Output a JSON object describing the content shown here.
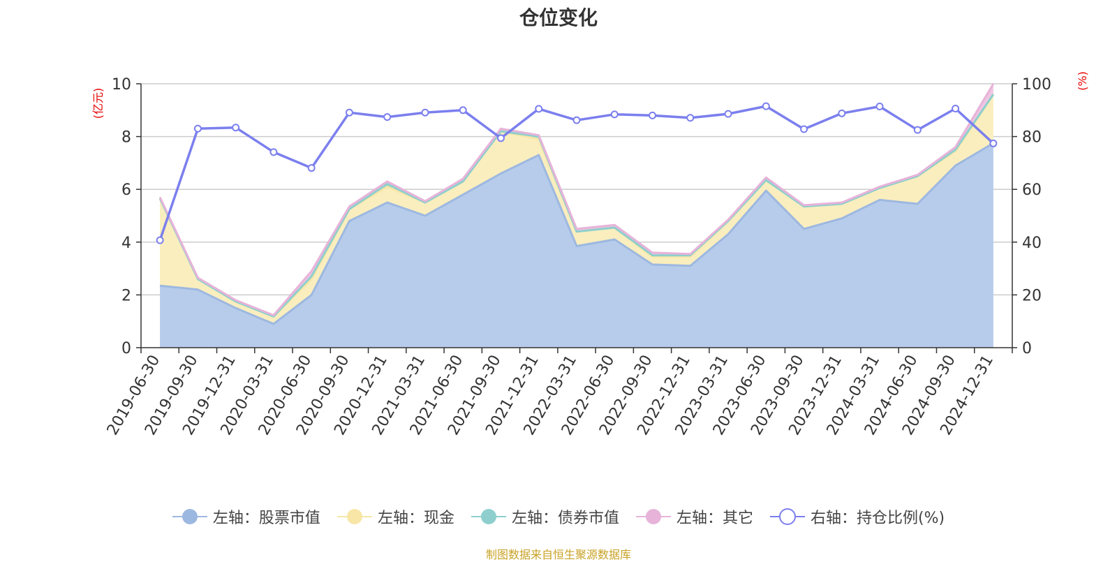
{
  "chart_data": {
    "type": "area+line",
    "title": "仓位变化",
    "left_axis": {
      "label": "(亿元)",
      "min": 0,
      "max": 10,
      "ticks": [
        0,
        2,
        4,
        6,
        8,
        10
      ]
    },
    "right_axis": {
      "label": "(%)",
      "min": 0,
      "max": 100,
      "ticks": [
        0,
        20,
        40,
        60,
        80,
        100
      ]
    },
    "categories": [
      "2019-06-30",
      "2019-09-30",
      "2019-12-31",
      "2020-03-31",
      "2020-06-30",
      "2020-09-30",
      "2020-12-31",
      "2021-03-31",
      "2021-06-30",
      "2021-09-30",
      "2021-12-31",
      "2022-03-31",
      "2022-06-30",
      "2022-09-30",
      "2022-12-31",
      "2023-03-31",
      "2023-06-30",
      "2023-09-30",
      "2023-12-31",
      "2024-03-31",
      "2024-06-30",
      "2024-09-30",
      "2024-12-31"
    ],
    "series": [
      {
        "name": "左轴：股票市值",
        "axis": "left",
        "stack": true,
        "color": "#9db8e0",
        "fill": "#b7cceb",
        "values": [
          2.35,
          2.2,
          1.5,
          0.9,
          2.0,
          4.8,
          5.5,
          5.0,
          5.8,
          6.6,
          7.3,
          3.85,
          4.1,
          3.15,
          3.1,
          4.3,
          5.95,
          4.5,
          4.9,
          5.6,
          5.45,
          6.9,
          7.75
        ]
      },
      {
        "name": "左轴：现金",
        "axis": "left",
        "stack": true,
        "color": "#f7e6a6",
        "fill": "#faeebe",
        "values": [
          3.3,
          0.4,
          0.25,
          0.28,
          0.6,
          0.45,
          0.6,
          0.5,
          0.5,
          1.6,
          0.6,
          0.55,
          0.45,
          0.3,
          0.35,
          0.5,
          0.4,
          0.85,
          0.55,
          0.45,
          1.05,
          0.55,
          1.85
        ]
      },
      {
        "name": "左轴：债券市值",
        "axis": "left",
        "stack": true,
        "color": "#8ecfcd",
        "fill": "#a6dad6",
        "values": [
          0.0,
          0.0,
          0.0,
          0.0,
          0.1,
          0.0,
          0.1,
          0.0,
          0.0,
          0.0,
          0.1,
          0.0,
          0.0,
          0.05,
          0.05,
          0.0,
          0.0,
          0.0,
          0.0,
          0.0,
          0.0,
          0.05,
          0.0
        ]
      },
      {
        "name": "左轴：其它",
        "axis": "left",
        "stack": true,
        "color": "#e7b3d9",
        "fill": "#efc6e2",
        "values": [
          0.05,
          0.05,
          0.05,
          0.05,
          0.2,
          0.1,
          0.1,
          0.05,
          0.1,
          0.1,
          0.05,
          0.1,
          0.1,
          0.1,
          0.05,
          0.05,
          0.1,
          0.05,
          0.05,
          0.05,
          0.05,
          0.1,
          0.4
        ]
      },
      {
        "name": "右轴：持仓比例(%)",
        "axis": "right",
        "type": "line",
        "color": "#7b7fee",
        "values": [
          40.7,
          83.0,
          83.4,
          74.1,
          68.1,
          89.1,
          87.4,
          89.1,
          90.0,
          79.4,
          90.5,
          86.2,
          88.4,
          88.0,
          87.1,
          88.6,
          91.5,
          82.8,
          88.8,
          91.4,
          82.5,
          90.6,
          77.4
        ]
      }
    ],
    "legend_position": "bottom",
    "grid": true
  },
  "source_text": "制图数据来自恒生聚源数据库"
}
